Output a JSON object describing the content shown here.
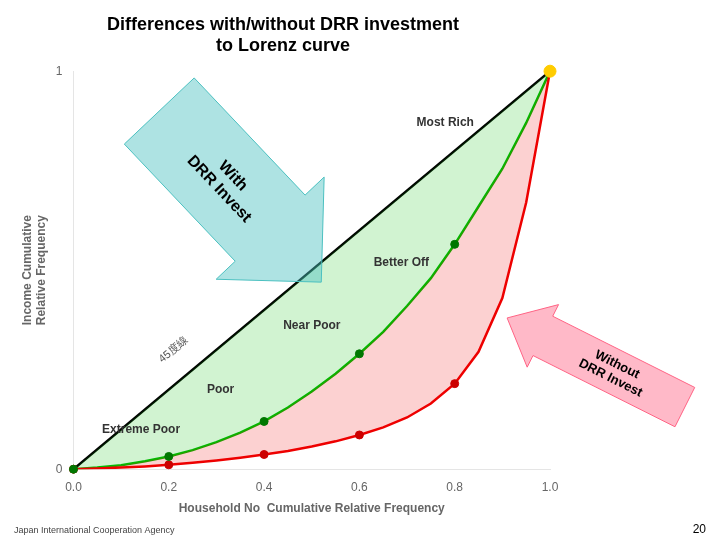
{
  "chart_data": {
    "type": "line",
    "title": "Differences with/without DRR investment\nto Lorenz curve",
    "xlabel": "Household No  Cumulative Relative Frequency",
    "ylabel": "Income Cumulative\nRelative Frequency",
    "series": [
      {
        "type": "line",
        "color": "#000000",
        "x": [
          0,
          1
        ],
        "values": [
          0,
          1
        ]
      },
      {
        "type": "line",
        "color": "#00bb00",
        "x": [
          0,
          0.05,
          0.1,
          0.15,
          0.2,
          0.25,
          0.3,
          0.35,
          0.4,
          0.45,
          0.5,
          0.55,
          0.6,
          0.65,
          0.7,
          0.75,
          0.8,
          0.85,
          0.9,
          0.95,
          1.0
        ],
        "values": [
          0,
          0.004,
          0.01,
          0.02,
          0.032,
          0.048,
          0.068,
          0.092,
          0.12,
          0.155,
          0.195,
          0.24,
          0.29,
          0.345,
          0.41,
          0.48,
          0.565,
          0.66,
          0.755,
          0.87,
          1.0
        ]
      },
      {
        "type": "line",
        "color": "#ee0000",
        "x": [
          0,
          0.05,
          0.1,
          0.15,
          0.2,
          0.25,
          0.3,
          0.35,
          0.4,
          0.45,
          0.5,
          0.55,
          0.6,
          0.65,
          0.7,
          0.75,
          0.8,
          0.85,
          0.9,
          0.95,
          1.0
        ],
        "values": [
          0,
          0.002,
          0.004,
          0.007,
          0.011,
          0.016,
          0.022,
          0.029,
          0.037,
          0.046,
          0.057,
          0.07,
          0.086,
          0.105,
          0.13,
          0.165,
          0.215,
          0.295,
          0.43,
          0.67,
          1.0
        ]
      },
      {
        "type": "scatter",
        "marker": "o",
        "color": "#cc0000",
        "x": [
          0,
          0.2,
          0.4,
          0.6,
          0.8,
          1.0
        ],
        "values": [
          0,
          0.011,
          0.037,
          0.086,
          0.215,
          1.0
        ]
      },
      {
        "type": "scatter",
        "marker": "o",
        "color": "#007700",
        "x": [
          0,
          0.2,
          0.4,
          0.6,
          0.8,
          1.0
        ],
        "values": [
          0,
          0.032,
          0.12,
          0.29,
          0.565,
          1.0
        ]
      },
      {
        "type": "scatter",
        "marker": "o",
        "color": "#ffcc00",
        "x": [
          1.0
        ],
        "values": [
          1.0
        ]
      }
    ],
    "xlim": [
      0,
      1
    ],
    "xticks": [
      {
        "value": 0,
        "label": "0.0"
      },
      0.2,
      0.4,
      0.6,
      0.8,
      {
        "value": 1,
        "label": "1.0"
      }
    ],
    "ylim": [
      0,
      1
    ],
    "yticks": [
      0,
      1
    ],
    "grid": false,
    "annotations": [
      "45度線",
      "Most Rich",
      "Better Off",
      "Near Poor",
      "Poor",
      "Extreme Poor",
      "With\nDRR Invest",
      "Without\nDRR Invest",
      "20",
      "Japan International Cooperation Agency"
    ]
  }
}
